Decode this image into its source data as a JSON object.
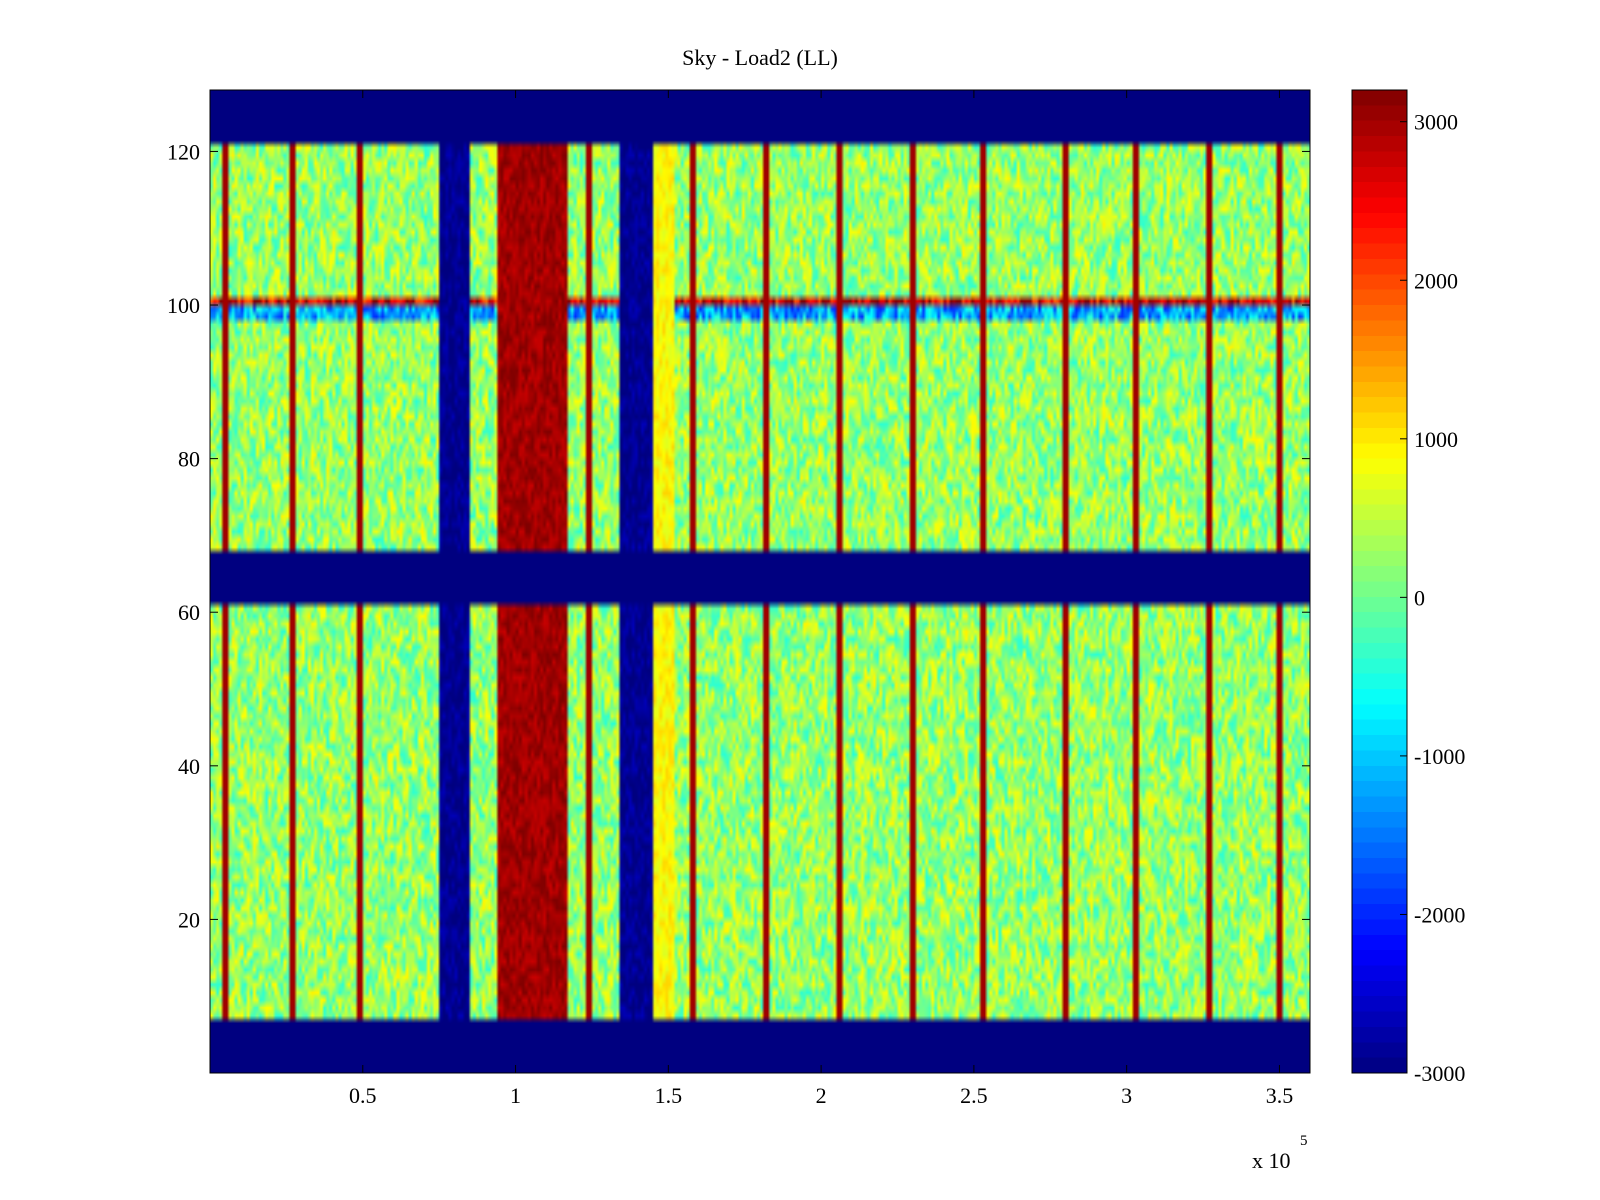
{
  "chart_data": {
    "type": "heatmap",
    "title": "Sky - Load2 (LL)",
    "xlabel": "",
    "ylabel": "",
    "x_exponent_label": "x 10",
    "x_exponent_sup": "5",
    "xlim": [
      0,
      3.6
    ],
    "ylim": [
      0,
      128
    ],
    "xticks": [
      0.5,
      1,
      1.5,
      2,
      2.5,
      3,
      3.5
    ],
    "xtick_labels": [
      "0.5",
      "1",
      "1.5",
      "2",
      "2.5",
      "3",
      "3.5"
    ],
    "yticks": [
      20,
      40,
      60,
      80,
      100,
      120
    ],
    "ytick_labels": [
      "20",
      "40",
      "60",
      "80",
      "100",
      "120"
    ],
    "colorbar": {
      "colormap": "jet",
      "clim": [
        -3000,
        3200
      ],
      "ticks": [
        -3000,
        -2000,
        -1000,
        0,
        1000,
        2000,
        3000
      ],
      "tick_labels": [
        "-3000",
        "-2000",
        "-1000",
        "0",
        "1000",
        "2000",
        "3000"
      ]
    },
    "background_value": 250,
    "masked_rows": [
      [
        0,
        7
      ],
      [
        61,
        68
      ],
      [
        121,
        128
      ]
    ],
    "bands": [
      {
        "x_from": 0.75,
        "x_to": 0.85,
        "value": -2900
      },
      {
        "x_from": 0.94,
        "x_to": 1.17,
        "value": 3000
      },
      {
        "x_from": 1.34,
        "x_to": 1.45,
        "value": -2900
      },
      {
        "x_from": 1.45,
        "x_to": 1.52,
        "value": 900
      }
    ],
    "vertical_lines_x": [
      0.05,
      0.27,
      0.49,
      1.24,
      1.58,
      1.82,
      2.06,
      2.3,
      2.53,
      2.8,
      3.03,
      3.27,
      3.5
    ],
    "horizontal_lines": [
      {
        "y": 100,
        "value": 2600
      },
      {
        "y": 99,
        "value": -1200
      }
    ],
    "grid": false
  }
}
